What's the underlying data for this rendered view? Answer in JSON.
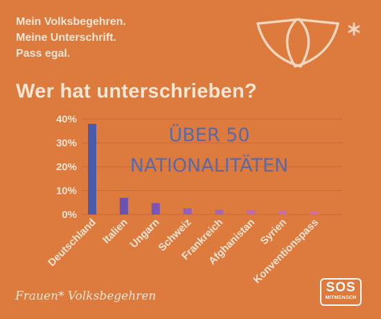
{
  "slogan": {
    "line1": "Mein Volksbegehren.",
    "line2": "Meine Unterschrift.",
    "line3": "Pass egal."
  },
  "headline": "Wer hat unterschrieben?",
  "annotation": {
    "line1": "ÜBER 50",
    "line2": "NATIONALITÄTEN"
  },
  "footer": {
    "brand": "Frauen* Volksbegehren",
    "sos_big": "SOS",
    "sos_small": "MITMENSCH"
  },
  "colors": {
    "background": "#dd7a3e",
    "text_light": "#fbe6d4",
    "annotation": "#5b6aa6",
    "bars": [
      "#4a5ba8",
      "#6a52b0",
      "#7a55b5",
      "#9460b8",
      "#a765b6",
      "#bd6aae",
      "#cc6ca7",
      "#d86da4"
    ]
  },
  "chart_data": {
    "type": "bar",
    "categories": [
      "Deutschland",
      "Italien",
      "Ungarn",
      "Schweiz",
      "Frankreich",
      "Afghanistan",
      "Syrien",
      "Konventionspass"
    ],
    "values": [
      38,
      7,
      4.8,
      2.6,
      2,
      1.9,
      1.6,
      1.3
    ],
    "ylim": [
      0,
      40
    ],
    "yticks": [
      0,
      10,
      20,
      30,
      40
    ],
    "ytick_labels": [
      "0%",
      "10%",
      "20%",
      "30%",
      "40%"
    ],
    "title": "",
    "xlabel": "",
    "ylabel": "",
    "grid": true
  }
}
